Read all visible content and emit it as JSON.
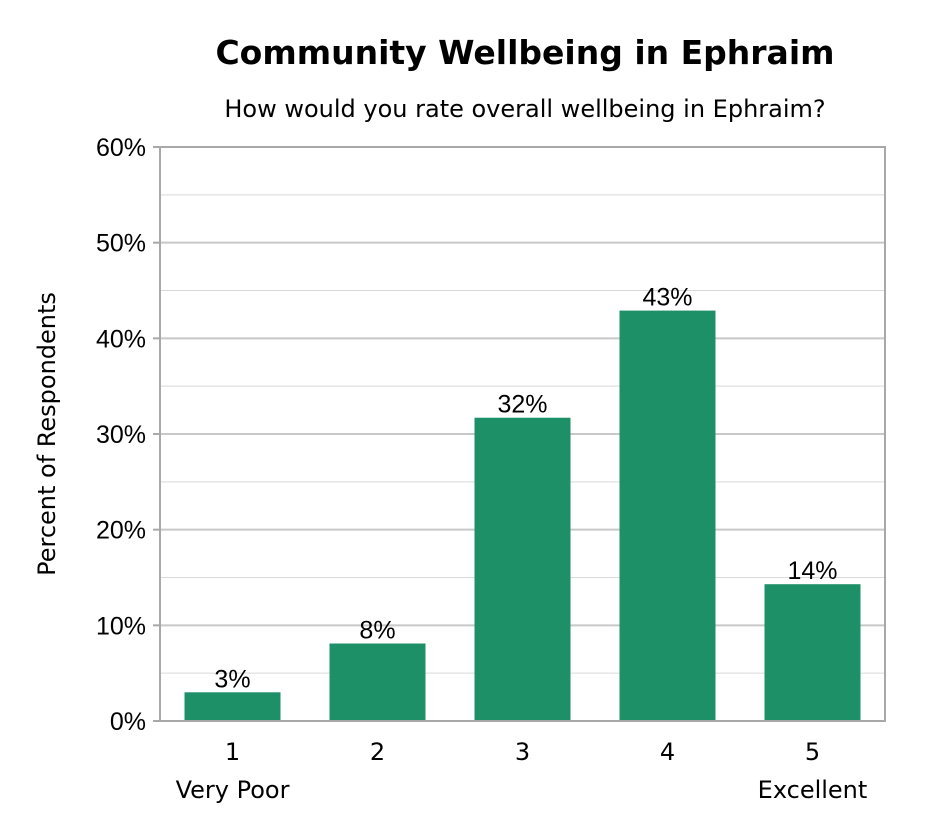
{
  "chart_data": {
    "type": "bar",
    "title": "Community Wellbeing in Ephraim",
    "subtitle": "How would you rate overall wellbeing in Ephraim?",
    "xlabel": "",
    "ylabel": "Percent of Respondents",
    "categories": [
      "1",
      "2",
      "3",
      "4",
      "5"
    ],
    "category_sublabels": [
      "Very Poor",
      "",
      "",
      "",
      "Excellent"
    ],
    "values": [
      3,
      8,
      32,
      43,
      14
    ],
    "plotted_values": [
      3.0,
      8.1,
      31.7,
      42.9,
      14.3
    ],
    "data_labels": [
      "3%",
      "8%",
      "32%",
      "43%",
      "14%"
    ],
    "ylim": [
      0,
      60
    ],
    "yticks": [
      0,
      10,
      20,
      30,
      40,
      50,
      60
    ],
    "ytick_labels": [
      "0%",
      "10%",
      "20%",
      "30%",
      "40%",
      "50%",
      "60%"
    ],
    "y_unit": "%",
    "grid": true,
    "minor_grid": true,
    "legend": "none",
    "bar_color": "#1e9068",
    "gridline_color": "#c8c8c8",
    "border_color": "#a8a8a8"
  }
}
